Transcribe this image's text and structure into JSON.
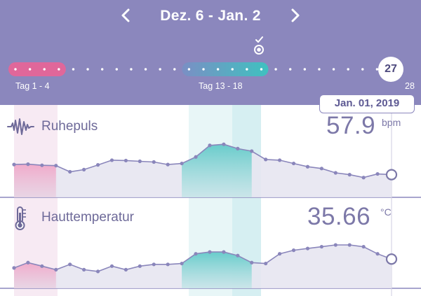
{
  "header": {
    "range_title": "Dez. 6 - Jan. 2",
    "prev_icon": "chevron-left-icon",
    "next_icon": "chevron-right-icon",
    "ovulation_icon": "ovulation-check-icon",
    "period_label": "Tag 1 - 4",
    "fertile_label": "Tag 13 - 18",
    "current_day": "27",
    "last_day": "28",
    "period_color": "#e0679a",
    "fertile_color": "#3fc1c0"
  },
  "tooltip": {
    "date": "Jan. 01, 2019"
  },
  "panels": [
    {
      "title": "Ruhepuls",
      "icon": "heartbeat-wave-icon",
      "value": "57.9",
      "unit": "bpm",
      "values": [
        10.2,
        10.3,
        10.0,
        9.9,
        8.2,
        8.8,
        10.1,
        11.4,
        11.3,
        11.1,
        10.9,
        10.2,
        10.5,
        12.3,
        15.5,
        15.8,
        14.6,
        13.9,
        11.6,
        11.4,
        10.5,
        9.6,
        9.1,
        7.9,
        7.4,
        6.6,
        7.6,
        7.4
      ]
    },
    {
      "title": "Hauttemperatur",
      "icon": "thermometer-icon",
      "value": "35.66",
      "unit": "°C",
      "values": [
        2.8,
        3.1,
        2.9,
        2.7,
        3.0,
        2.7,
        2.6,
        2.9,
        2.7,
        2.9,
        3.0,
        3.0,
        3.05,
        3.6,
        3.7,
        3.7,
        3.5,
        3.1,
        3.05,
        3.6,
        3.8,
        3.9,
        4.0,
        4.1,
        4.1,
        4.0,
        3.6,
        3.3
      ]
    }
  ]
}
